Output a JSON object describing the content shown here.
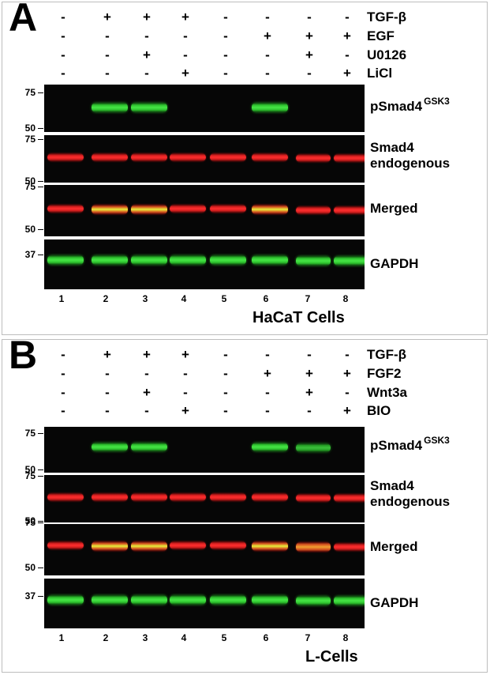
{
  "panels": [
    {
      "id": "panel-a",
      "letter": "A",
      "cell_line": "HaCaT Cells",
      "treatments": [
        {
          "name": "TGF-β",
          "signs": [
            "-",
            "+",
            "+",
            "+",
            "-",
            "-",
            "-",
            "-"
          ]
        },
        {
          "name": "EGF",
          "signs": [
            "-",
            "-",
            "-",
            "-",
            "-",
            "+",
            "+",
            "+"
          ]
        },
        {
          "name": "U0126",
          "signs": [
            "-",
            "-",
            "+",
            "-",
            "-",
            "-",
            "+",
            "-"
          ]
        },
        {
          "name": "LiCl",
          "signs": [
            "-",
            "-",
            "-",
            "+",
            "-",
            "-",
            "-",
            "+"
          ]
        }
      ],
      "lanes": [
        "1",
        "2",
        "3",
        "4",
        "5",
        "6",
        "7",
        "8"
      ],
      "blots": [
        {
          "label": "pSmad4",
          "label_sup": "GSK3",
          "label2": "",
          "markers": [
            "75",
            "50"
          ],
          "channel": "green",
          "intensity": [
            0,
            1.0,
            1.0,
            0,
            0,
            1.0,
            0,
            0
          ]
        },
        {
          "label": "Smad4",
          "label_sup": "",
          "label2": "endogenous",
          "markers": [
            "75",
            "50"
          ],
          "channel": "red",
          "intensity": [
            1,
            1,
            1,
            1,
            1,
            1,
            1,
            1
          ]
        },
        {
          "label": "Merged",
          "label_sup": "",
          "label2": "",
          "markers": [
            "75",
            "50"
          ],
          "channel": "merged",
          "intensity": [
            0,
            1.0,
            1.0,
            0,
            0,
            1.0,
            0,
            0
          ]
        },
        {
          "label": "GAPDH",
          "label_sup": "",
          "label2": "",
          "markers": [
            "37"
          ],
          "channel": "green",
          "intensity": [
            1,
            1,
            1,
            1,
            1,
            1,
            1,
            1
          ]
        }
      ]
    },
    {
      "id": "panel-b",
      "letter": "B",
      "cell_line": "L-Cells",
      "treatments": [
        {
          "name": "TGF-β",
          "signs": [
            "-",
            "+",
            "+",
            "+",
            "-",
            "-",
            "-",
            "-"
          ]
        },
        {
          "name": "FGF2",
          "signs": [
            "-",
            "-",
            "-",
            "-",
            "-",
            "+",
            "+",
            "+"
          ]
        },
        {
          "name": "Wnt3a",
          "signs": [
            "-",
            "-",
            "+",
            "-",
            "-",
            "-",
            "+",
            "-"
          ]
        },
        {
          "name": "BIO",
          "signs": [
            "-",
            "-",
            "-",
            "+",
            "-",
            "-",
            "-",
            "+"
          ]
        }
      ],
      "lanes": [
        "1",
        "2",
        "3",
        "4",
        "5",
        "6",
        "7",
        "8"
      ],
      "blots": [
        {
          "label": "pSmad4",
          "label_sup": "GSK3",
          "label2": "",
          "markers": [
            "75",
            "50"
          ],
          "channel": "green",
          "intensity": [
            0,
            1.0,
            1.0,
            0,
            0,
            1.0,
            0.7,
            0
          ]
        },
        {
          "label": "Smad4",
          "label_sup": "",
          "label2": "endogenous",
          "markers": [
            "75",
            "50"
          ],
          "channel": "red",
          "intensity": [
            1,
            1,
            1,
            1,
            1,
            1,
            1,
            1
          ]
        },
        {
          "label": "Merged",
          "label_sup": "",
          "label2": "",
          "markers": [
            "75",
            "50"
          ],
          "channel": "merged",
          "intensity": [
            0,
            1.0,
            1.0,
            0,
            0,
            1.0,
            0.7,
            0
          ]
        },
        {
          "label": "GAPDH",
          "label_sup": "",
          "label2": "",
          "markers": [
            "37"
          ],
          "channel": "green",
          "intensity": [
            1,
            1,
            1,
            1,
            1,
            1,
            1,
            1
          ]
        }
      ]
    }
  ]
}
